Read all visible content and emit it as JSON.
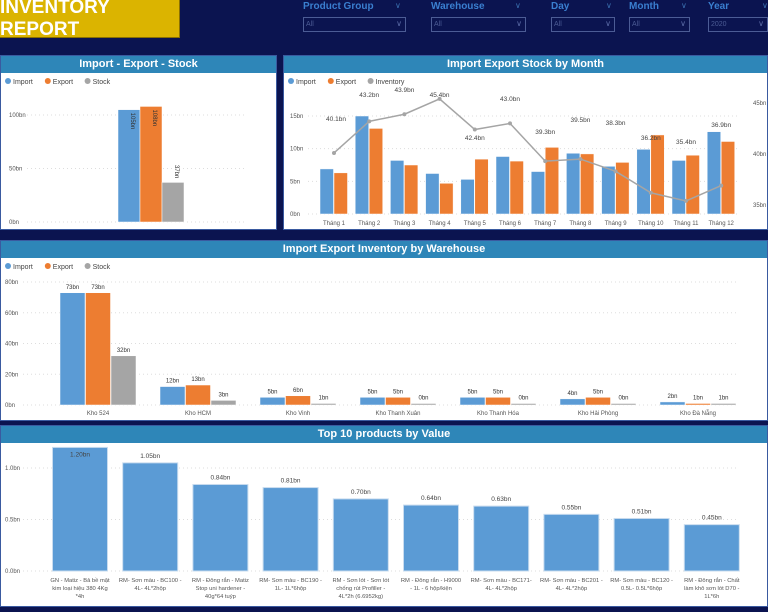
{
  "header": {
    "title": "INVENTORY REPORT"
  },
  "filters": [
    {
      "label": "Product Group",
      "value": "All"
    },
    {
      "label": "Warehouse",
      "value": "All"
    },
    {
      "label": "Day",
      "value": "All"
    },
    {
      "label": "Month",
      "value": "All"
    },
    {
      "label": "Year",
      "value": "2020"
    }
  ],
  "colors": {
    "import": "#5b9bd5",
    "export": "#ed7d31",
    "stock": "#a5a5a5",
    "header": "#2e86b8",
    "background": "#0b1450",
    "title_bg": "#dbb400"
  },
  "chart_data": [
    {
      "type": "bar",
      "title": "Import - Export - Stock",
      "legend": [
        "Import",
        "Export",
        "Stock"
      ],
      "legend_position": "top-left",
      "grid": true,
      "categories": [
        ""
      ],
      "series": [
        {
          "name": "Import",
          "values": [
            105
          ]
        },
        {
          "name": "Export",
          "values": [
            108
          ]
        },
        {
          "name": "Stock",
          "values": [
            37
          ]
        }
      ],
      "data_labels": [
        "105bn",
        "108bn",
        "37bn"
      ],
      "yticks": [
        "0bn",
        "50bn",
        "100bn"
      ],
      "ylim": [
        0,
        110
      ]
    },
    {
      "type": "bar+line",
      "title": "Import Export Stock by Month",
      "legend": [
        "Import",
        "Export",
        "Inventory"
      ],
      "legend_position": "top-left",
      "grid": true,
      "categories": [
        "Tháng 1",
        "Tháng 2",
        "Tháng 3",
        "Tháng 4",
        "Tháng 5",
        "Tháng 6",
        "Tháng 7",
        "Tháng 8",
        "Tháng 9",
        "Tháng 10",
        "Tháng 11",
        "Tháng 12"
      ],
      "series": [
        {
          "name": "Import",
          "values": [
            6.9,
            15.0,
            8.2,
            6.2,
            5.3,
            8.8,
            6.5,
            9.3,
            7.3,
            9.9,
            8.2,
            12.6
          ]
        },
        {
          "name": "Export",
          "values": [
            6.3,
            13.1,
            7.5,
            4.7,
            8.4,
            8.1,
            10.2,
            9.2,
            7.9,
            12.1,
            9.0,
            11.1
          ]
        },
        {
          "name": "Inventory",
          "values": [
            40.1,
            43.2,
            43.9,
            45.4,
            42.4,
            43.0,
            39.3,
            39.5,
            38.3,
            36.2,
            35.4,
            36.9
          ],
          "axis": "right"
        }
      ],
      "line_labels": [
        "40.1bn",
        "43.2bn",
        "43.9bn",
        "45.4bn",
        "42.4bn",
        "43.0bn",
        "39.3bn",
        "39.5bn",
        "38.3bn",
        "36.2bn",
        "35.4bn",
        "36.9bn"
      ],
      "yticks": [
        "0bn",
        "5bn",
        "10bn",
        "15bn"
      ],
      "ylim": [
        0,
        15
      ],
      "y2ticks": [
        "35bn",
        "40bn",
        "45bn"
      ],
      "y2lim": [
        35,
        45
      ]
    },
    {
      "type": "bar",
      "title": "Import Export Inventory by Warehouse",
      "legend": [
        "Import",
        "Export",
        "Stock"
      ],
      "legend_position": "top-left",
      "grid": true,
      "categories": [
        "Kho 524",
        "Kho HCM",
        "Kho Vinh",
        "Kho Thanh Xuân",
        "Kho Thanh Hóa",
        "Kho Hải Phòng",
        "Kho Đà Nẵng"
      ],
      "series": [
        {
          "name": "Import",
          "values": [
            73,
            12,
            5,
            5,
            5,
            4,
            2
          ],
          "labels": [
            "73bn",
            "12bn",
            "5bn",
            "5bn",
            "5bn",
            "4bn",
            "2bn"
          ]
        },
        {
          "name": "Export",
          "values": [
            73,
            13,
            6,
            5,
            5,
            5,
            1
          ],
          "labels": [
            "73bn",
            "13bn",
            "6bn",
            "5bn",
            "5bn",
            "5bn",
            "1bn"
          ]
        },
        {
          "name": "Stock",
          "values": [
            32,
            3,
            1,
            0,
            0,
            0,
            1
          ],
          "labels": [
            "32bn",
            "3bn",
            "1bn",
            "0bn",
            "0bn",
            "0bn",
            "1bn"
          ]
        }
      ],
      "yticks": [
        "0bn",
        "20bn",
        "40bn",
        "60bn",
        "80bn"
      ],
      "ylim": [
        0,
        80
      ]
    },
    {
      "type": "bar",
      "title": "Top 10 products by Value",
      "grid": true,
      "categories": [
        [
          "GN - Matiz - Bả bề mặt",
          "kim loại hiệu 380 4Kg",
          "*4h"
        ],
        [
          "RM- Sơn màu - BC100 -",
          "4L- 4L*2hộp"
        ],
        [
          "RM - Đông rắn - Matiz",
          "Stop uni hardener -",
          "40g*64 tuýp"
        ],
        [
          "RM- Sơn màu - BC190 -",
          "1L- 1L*6hộp"
        ],
        [
          "RM - Sơn lót - Sơn lót",
          "chống rút Profiller -",
          "4L*2h (6.6952kg)"
        ],
        [
          "RM - Đông rắn - H9000",
          "- 1L - 6 hộp/kiện"
        ],
        [
          "RM- Sơn màu - BC171-",
          "4L- 4L*2hộp"
        ],
        [
          "RM- Sơn màu - BC201 -",
          "4L- 4L*2hộp"
        ],
        [
          "RM- Sơn màu - BC120 -",
          "0.5L- 0.5L*6hộp"
        ],
        [
          "RM - Đông rắn - Chất",
          "làm khô sơn lót D70 -",
          "1L*6h"
        ]
      ],
      "values": [
        1.2,
        1.05,
        0.84,
        0.81,
        0.7,
        0.64,
        0.63,
        0.55,
        0.51,
        0.45
      ],
      "data_labels": [
        "1.20bn",
        "1.05bn",
        "0.84bn",
        "0.81bn",
        "0.70bn",
        "0.64bn",
        "0.63bn",
        "0.55bn",
        "0.51bn",
        "0.45bn"
      ],
      "yticks": [
        "0.0bn",
        "0.5bn",
        "1.0bn"
      ],
      "ylim": [
        0,
        1.2
      ]
    }
  ]
}
